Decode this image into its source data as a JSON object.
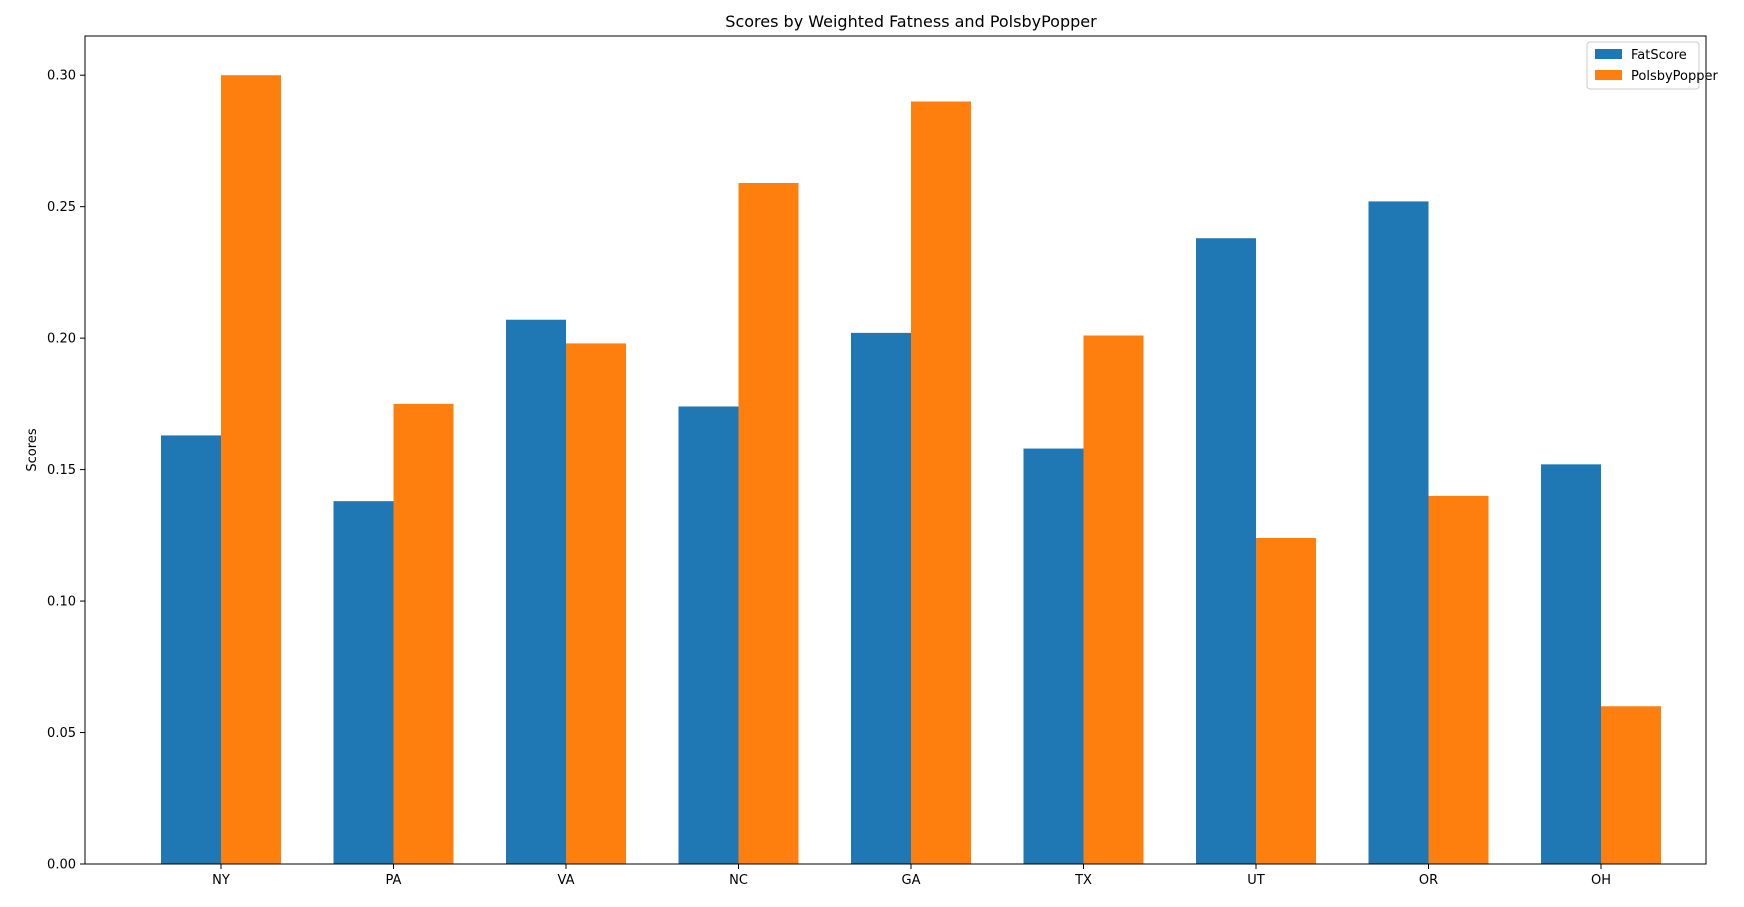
{
  "chart_data": {
    "type": "bar",
    "title": "Scores by Weighted Fatness and PolsbyPopper",
    "xlabel": "",
    "ylabel": "Scores",
    "categories": [
      "NY",
      "PA",
      "VA",
      "NC",
      "GA",
      "TX",
      "UT",
      "OR",
      "OH"
    ],
    "series": [
      {
        "name": "FatScore",
        "color": "#1f77b4",
        "values": [
          0.163,
          0.138,
          0.207,
          0.174,
          0.202,
          0.158,
          0.238,
          0.252,
          0.152
        ]
      },
      {
        "name": "PolsbyPopper",
        "color": "#ff7f0e",
        "values": [
          0.3,
          0.175,
          0.198,
          0.259,
          0.29,
          0.201,
          0.124,
          0.14,
          0.06
        ]
      }
    ],
    "ylim": [
      0,
      0.315
    ],
    "yticks": [
      "0.00",
      "0.05",
      "0.10",
      "0.15",
      "0.20",
      "0.25",
      "0.30"
    ],
    "legend_position": "top-right",
    "grid": false
  }
}
